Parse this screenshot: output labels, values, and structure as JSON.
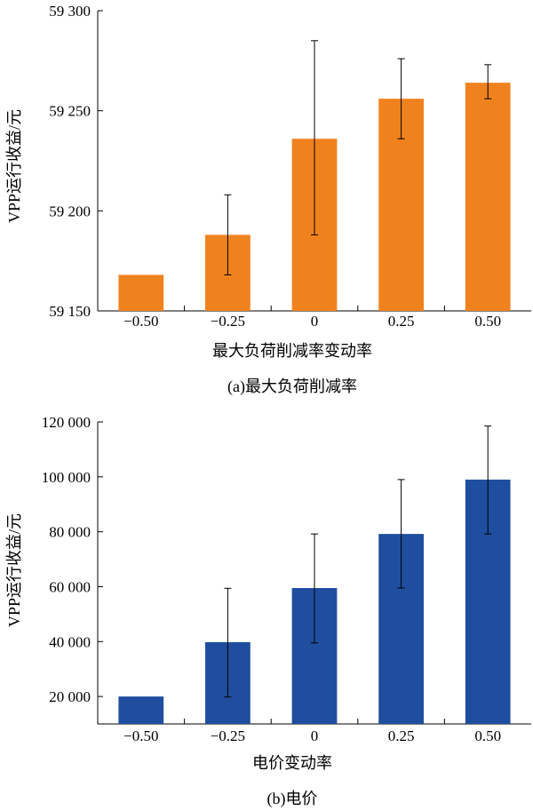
{
  "chart_data": [
    {
      "type": "bar",
      "panel": "a",
      "categories": [
        "−0.50",
        "−0.25",
        "0",
        "0.25",
        "0.50"
      ],
      "values": [
        59168,
        59188,
        59236,
        59256,
        59264
      ],
      "error_low": [
        59168,
        59168,
        59188,
        59236,
        59256
      ],
      "error_high": [
        59168,
        59208,
        59285,
        59276,
        59273
      ],
      "ylim": [
        59150,
        59300
      ],
      "yticks": [
        59150,
        59200,
        59250,
        59300
      ],
      "ytick_labels": [
        "59 150",
        "59 200",
        "59 250",
        "59 300"
      ],
      "xlabel": "最大负荷削减率变动率",
      "ylabel": "VPP运行收益/元",
      "caption": "(a)最大负荷削减率",
      "color": "#f0821e",
      "grid": false,
      "legend": "none"
    },
    {
      "type": "bar",
      "panel": "b",
      "categories": [
        "−0.50",
        "−0.25",
        "0",
        "0.25",
        "0.50"
      ],
      "values": [
        20000,
        39800,
        59500,
        79200,
        99000
      ],
      "error_low": [
        20000,
        19800,
        39500,
        59500,
        79200
      ],
      "error_high": [
        20000,
        59400,
        79200,
        99000,
        118500
      ],
      "ylim": [
        10000,
        120000
      ],
      "yticks": [
        20000,
        40000,
        60000,
        80000,
        100000,
        120000
      ],
      "ytick_labels": [
        "20 000",
        "40 000",
        "60 000",
        "80 000",
        "100 000",
        "120 000"
      ],
      "xlabel": "电价变动率",
      "ylabel": "VPP运行收益/元",
      "caption": "(b)电价",
      "color": "#1f4e9e",
      "grid": false,
      "legend": "none"
    }
  ]
}
